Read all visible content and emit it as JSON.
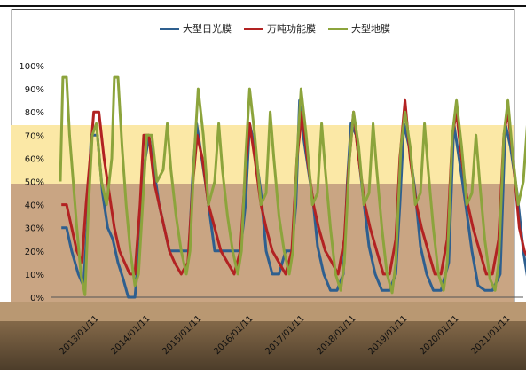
{
  "chart_data": {
    "type": "line",
    "title": "",
    "xlabel": "",
    "ylabel": "",
    "ylim": [
      0,
      100
    ],
    "y_ticks": [
      "0%",
      "10%",
      "20%",
      "30%",
      "40%",
      "50%",
      "60%",
      "70%",
      "80%",
      "90%",
      "100%"
    ],
    "x_tick_labels": [
      "2013/01/11",
      "2014/01/11",
      "2015/01/11",
      "2016/01/11",
      "2017/01/11",
      "2018/01/11",
      "2019/01/11",
      "2020/01/11",
      "2021/01/11"
    ],
    "x_year_range": [
      2013,
      2022
    ],
    "legend_position": "top",
    "grid": false,
    "series": [
      {
        "name": "大型日光膜",
        "color": "#2e5f8f",
        "points": [
          [
            2013.02,
            30
          ],
          [
            2013.12,
            30
          ],
          [
            2013.22,
            20
          ],
          [
            2013.35,
            10
          ],
          [
            2013.45,
            5
          ],
          [
            2013.52,
            30
          ],
          [
            2013.6,
            70
          ],
          [
            2013.72,
            70
          ],
          [
            2013.82,
            45
          ],
          [
            2013.92,
            30
          ],
          [
            2014.02,
            25
          ],
          [
            2014.12,
            15
          ],
          [
            2014.22,
            8
          ],
          [
            2014.32,
            0
          ],
          [
            2014.45,
            0
          ],
          [
            2014.55,
            25
          ],
          [
            2014.62,
            55
          ],
          [
            2014.72,
            70
          ],
          [
            2014.82,
            55
          ],
          [
            2014.92,
            40
          ],
          [
            2015.02,
            30
          ],
          [
            2015.12,
            20
          ],
          [
            2015.22,
            20
          ],
          [
            2015.38,
            20
          ],
          [
            2015.5,
            20
          ],
          [
            2015.58,
            55
          ],
          [
            2015.65,
            75
          ],
          [
            2015.75,
            60
          ],
          [
            2015.85,
            45
          ],
          [
            2016.0,
            20
          ],
          [
            2016.12,
            20
          ],
          [
            2016.25,
            20
          ],
          [
            2016.38,
            20
          ],
          [
            2016.5,
            20
          ],
          [
            2016.6,
            40
          ],
          [
            2016.68,
            75
          ],
          [
            2016.78,
            65
          ],
          [
            2016.9,
            45
          ],
          [
            2017.0,
            20
          ],
          [
            2017.12,
            10
          ],
          [
            2017.25,
            10
          ],
          [
            2017.38,
            20
          ],
          [
            2017.5,
            20
          ],
          [
            2017.58,
            40
          ],
          [
            2017.65,
            85
          ],
          [
            2017.72,
            70
          ],
          [
            2017.82,
            55
          ],
          [
            2017.92,
            40
          ],
          [
            2018.0,
            22
          ],
          [
            2018.12,
            10
          ],
          [
            2018.25,
            3
          ],
          [
            2018.38,
            3
          ],
          [
            2018.5,
            10
          ],
          [
            2018.58,
            50
          ],
          [
            2018.65,
            75
          ],
          [
            2018.75,
            70
          ],
          [
            2018.88,
            45
          ],
          [
            2019.0,
            22
          ],
          [
            2019.12,
            10
          ],
          [
            2019.25,
            3
          ],
          [
            2019.4,
            3
          ],
          [
            2019.52,
            10
          ],
          [
            2019.6,
            40
          ],
          [
            2019.68,
            75
          ],
          [
            2019.78,
            65
          ],
          [
            2019.9,
            45
          ],
          [
            2020.0,
            22
          ],
          [
            2020.12,
            10
          ],
          [
            2020.25,
            3
          ],
          [
            2020.4,
            3
          ],
          [
            2020.55,
            15
          ],
          [
            2020.65,
            75
          ],
          [
            2020.75,
            60
          ],
          [
            2020.88,
            40
          ],
          [
            2021.0,
            20
          ],
          [
            2021.12,
            5
          ],
          [
            2021.25,
            3
          ],
          [
            2021.4,
            3
          ],
          [
            2021.55,
            10
          ],
          [
            2021.65,
            75
          ],
          [
            2021.75,
            65
          ],
          [
            2021.88,
            45
          ],
          [
            2022.0,
            20
          ],
          [
            2022.12,
            3
          ],
          [
            2022.3,
            3
          ],
          [
            2022.45,
            10
          ],
          [
            2022.55,
            50
          ],
          [
            2022.62,
            75
          ],
          [
            2022.7,
            60
          ],
          [
            2022.82,
            3
          ],
          [
            2022.98,
            3
          ]
        ]
      },
      {
        "name": "万吨功能膜",
        "color": "#b22222",
        "points": [
          [
            2013.02,
            40
          ],
          [
            2013.12,
            40
          ],
          [
            2013.22,
            30
          ],
          [
            2013.32,
            20
          ],
          [
            2013.42,
            15
          ],
          [
            2013.5,
            40
          ],
          [
            2013.58,
            60
          ],
          [
            2013.65,
            80
          ],
          [
            2013.75,
            80
          ],
          [
            2013.85,
            60
          ],
          [
            2013.95,
            45
          ],
          [
            2014.05,
            30
          ],
          [
            2014.15,
            20
          ],
          [
            2014.25,
            15
          ],
          [
            2014.35,
            10
          ],
          [
            2014.45,
            10
          ],
          [
            2014.55,
            40
          ],
          [
            2014.62,
            70
          ],
          [
            2014.72,
            70
          ],
          [
            2014.82,
            50
          ],
          [
            2014.92,
            40
          ],
          [
            2015.02,
            30
          ],
          [
            2015.12,
            20
          ],
          [
            2015.22,
            15
          ],
          [
            2015.35,
            10
          ],
          [
            2015.48,
            15
          ],
          [
            2015.58,
            50
          ],
          [
            2015.66,
            70
          ],
          [
            2015.76,
            60
          ],
          [
            2015.88,
            40
          ],
          [
            2016.0,
            30
          ],
          [
            2016.12,
            20
          ],
          [
            2016.25,
            15
          ],
          [
            2016.38,
            10
          ],
          [
            2016.5,
            20
          ],
          [
            2016.6,
            55
          ],
          [
            2016.68,
            75
          ],
          [
            2016.78,
            60
          ],
          [
            2016.9,
            40
          ],
          [
            2017.0,
            30
          ],
          [
            2017.12,
            20
          ],
          [
            2017.25,
            15
          ],
          [
            2017.38,
            10
          ],
          [
            2017.5,
            20
          ],
          [
            2017.6,
            60
          ],
          [
            2017.7,
            80
          ],
          [
            2017.8,
            60
          ],
          [
            2017.92,
            40
          ],
          [
            2018.02,
            30
          ],
          [
            2018.15,
            20
          ],
          [
            2018.28,
            15
          ],
          [
            2018.4,
            10
          ],
          [
            2018.52,
            25
          ],
          [
            2018.6,
            55
          ],
          [
            2018.7,
            80
          ],
          [
            2018.8,
            60
          ],
          [
            2018.92,
            40
          ],
          [
            2019.02,
            30
          ],
          [
            2019.15,
            20
          ],
          [
            2019.28,
            10
          ],
          [
            2019.4,
            10
          ],
          [
            2019.52,
            25
          ],
          [
            2019.6,
            60
          ],
          [
            2019.7,
            85
          ],
          [
            2019.8,
            60
          ],
          [
            2019.92,
            40
          ],
          [
            2020.02,
            30
          ],
          [
            2020.15,
            20
          ],
          [
            2020.28,
            10
          ],
          [
            2020.4,
            10
          ],
          [
            2020.52,
            25
          ],
          [
            2020.62,
            70
          ],
          [
            2020.7,
            80
          ],
          [
            2020.8,
            60
          ],
          [
            2020.92,
            40
          ],
          [
            2021.02,
            30
          ],
          [
            2021.15,
            20
          ],
          [
            2021.28,
            10
          ],
          [
            2021.4,
            10
          ],
          [
            2021.52,
            25
          ],
          [
            2021.62,
            70
          ],
          [
            2021.7,
            80
          ],
          [
            2021.8,
            60
          ],
          [
            2021.92,
            30
          ],
          [
            2022.02,
            20
          ],
          [
            2022.15,
            15
          ],
          [
            2022.3,
            15
          ],
          [
            2022.45,
            20
          ],
          [
            2022.55,
            55
          ],
          [
            2022.62,
            60
          ],
          [
            2022.7,
            30
          ],
          [
            2022.8,
            12
          ],
          [
            2022.98,
            12
          ]
        ]
      },
      {
        "name": "大型地膜",
        "color": "#8ca43c",
        "points": [
          [
            2013.0,
            50
          ],
          [
            2013.05,
            95
          ],
          [
            2013.12,
            95
          ],
          [
            2013.18,
            70
          ],
          [
            2013.25,
            50
          ],
          [
            2013.32,
            30
          ],
          [
            2013.4,
            10
          ],
          [
            2013.48,
            1
          ],
          [
            2013.55,
            40
          ],
          [
            2013.62,
            70
          ],
          [
            2013.7,
            75
          ],
          [
            2013.8,
            50
          ],
          [
            2013.9,
            40
          ],
          [
            2014.0,
            60
          ],
          [
            2014.05,
            95
          ],
          [
            2014.12,
            95
          ],
          [
            2014.2,
            65
          ],
          [
            2014.28,
            40
          ],
          [
            2014.36,
            20
          ],
          [
            2014.45,
            5
          ],
          [
            2014.52,
            10
          ],
          [
            2014.6,
            40
          ],
          [
            2014.68,
            70
          ],
          [
            2014.78,
            70
          ],
          [
            2014.88,
            50
          ],
          [
            2015.0,
            55
          ],
          [
            2015.08,
            75
          ],
          [
            2015.15,
            55
          ],
          [
            2015.25,
            35
          ],
          [
            2015.35,
            20
          ],
          [
            2015.45,
            10
          ],
          [
            2015.52,
            20
          ],
          [
            2015.6,
            60
          ],
          [
            2015.68,
            90
          ],
          [
            2015.78,
            70
          ],
          [
            2015.88,
            40
          ],
          [
            2016.0,
            50
          ],
          [
            2016.08,
            75
          ],
          [
            2016.15,
            55
          ],
          [
            2016.25,
            35
          ],
          [
            2016.35,
            20
          ],
          [
            2016.45,
            10
          ],
          [
            2016.52,
            20
          ],
          [
            2016.6,
            60
          ],
          [
            2016.68,
            90
          ],
          [
            2016.78,
            70
          ],
          [
            2016.9,
            40
          ],
          [
            2017.0,
            45
          ],
          [
            2017.08,
            80
          ],
          [
            2017.15,
            60
          ],
          [
            2017.25,
            35
          ],
          [
            2017.35,
            20
          ],
          [
            2017.45,
            10
          ],
          [
            2017.52,
            20
          ],
          [
            2017.6,
            60
          ],
          [
            2017.68,
            90
          ],
          [
            2017.78,
            70
          ],
          [
            2017.9,
            40
          ],
          [
            2018.0,
            45
          ],
          [
            2018.08,
            75
          ],
          [
            2018.15,
            55
          ],
          [
            2018.25,
            30
          ],
          [
            2018.35,
            10
          ],
          [
            2018.45,
            3
          ],
          [
            2018.52,
            15
          ],
          [
            2018.62,
            60
          ],
          [
            2018.7,
            80
          ],
          [
            2018.8,
            65
          ],
          [
            2018.9,
            40
          ],
          [
            2019.0,
            45
          ],
          [
            2019.08,
            75
          ],
          [
            2019.15,
            55
          ],
          [
            2019.25,
            30
          ],
          [
            2019.35,
            10
          ],
          [
            2019.45,
            2
          ],
          [
            2019.52,
            15
          ],
          [
            2019.62,
            65
          ],
          [
            2019.7,
            80
          ],
          [
            2019.8,
            65
          ],
          [
            2019.9,
            40
          ],
          [
            2020.0,
            45
          ],
          [
            2020.08,
            75
          ],
          [
            2020.15,
            55
          ],
          [
            2020.25,
            30
          ],
          [
            2020.35,
            10
          ],
          [
            2020.45,
            3
          ],
          [
            2020.52,
            15
          ],
          [
            2020.62,
            70
          ],
          [
            2020.7,
            85
          ],
          [
            2020.8,
            65
          ],
          [
            2020.9,
            40
          ],
          [
            2021.0,
            45
          ],
          [
            2021.08,
            70
          ],
          [
            2021.15,
            50
          ],
          [
            2021.25,
            25
          ],
          [
            2021.35,
            8
          ],
          [
            2021.45,
            3
          ],
          [
            2021.52,
            15
          ],
          [
            2021.62,
            70
          ],
          [
            2021.7,
            85
          ],
          [
            2021.8,
            60
          ],
          [
            2021.9,
            40
          ],
          [
            2022.0,
            50
          ],
          [
            2022.08,
            75
          ],
          [
            2022.15,
            55
          ],
          [
            2022.25,
            30
          ],
          [
            2022.35,
            8
          ],
          [
            2022.45,
            3
          ],
          [
            2022.55,
            3
          ],
          [
            2022.65,
            5
          ],
          [
            2022.75,
            8
          ],
          [
            2022.98,
            8
          ]
        ]
      }
    ]
  }
}
